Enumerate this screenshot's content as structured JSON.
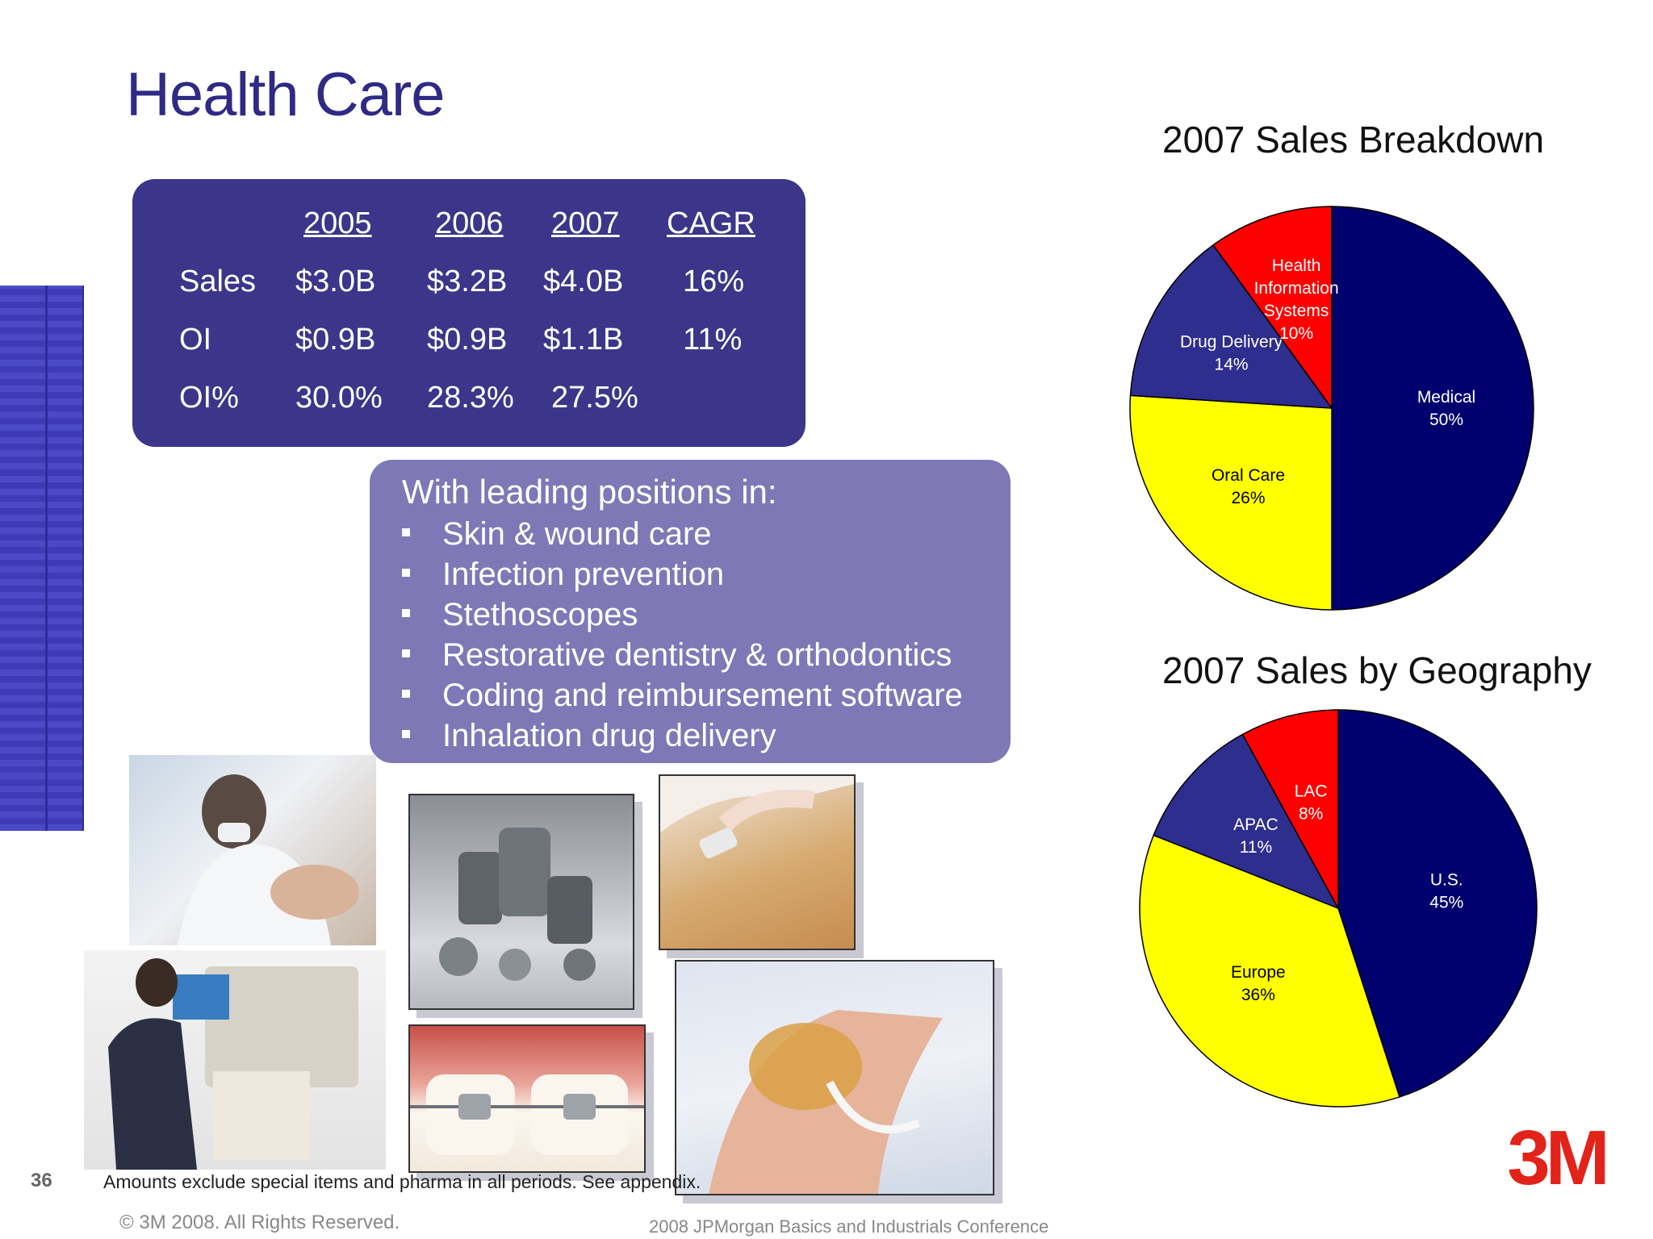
{
  "slide": {
    "title": "Health Care",
    "page_number": "36",
    "footnote": "Amounts exclude special items and pharma  in all periods. See appendix.",
    "copyright": "© 3M 2008.  All Rights Reserved.",
    "conference": "2008 JPMorgan Basics and Industrials Conference",
    "logo_text": "3M"
  },
  "financials": {
    "headers": [
      "2005",
      "2006",
      "2007",
      "CAGR"
    ],
    "rows": [
      {
        "label": "Sales",
        "values": [
          "$3.0B",
          "$3.2B",
          "$4.0B",
          "16%"
        ]
      },
      {
        "label": "OI",
        "values": [
          "$0.9B",
          "$0.9B",
          "$1.1B",
          "11%"
        ]
      },
      {
        "label": "OI%",
        "values": [
          "30.0%",
          "28.3%",
          "27.5%",
          ""
        ]
      }
    ]
  },
  "leading_positions": {
    "title": "With leading positions in:",
    "items": [
      "Skin & wound care",
      "Infection prevention",
      "Stethoscopes",
      "Restorative dentistry & orthodontics",
      "Coding and reimbursement software",
      "Inhalation drug delivery"
    ]
  },
  "colors": {
    "title": "#2e2a85",
    "fin_box": "#3b368a",
    "lead_box": "#7e78b6",
    "navy": "#00006e",
    "yellow": "#ffff00",
    "blue": "#2e2e8f",
    "red": "#ff0000",
    "logo_red": "#e2231a"
  },
  "chart_data": [
    {
      "type": "pie",
      "title": "2007 Sales Breakdown",
      "slices": [
        {
          "label_lines": [
            "Medical",
            "50%"
          ],
          "value": 50,
          "color": "#00006e",
          "text_color": "#ffffff"
        },
        {
          "label_lines": [
            "Oral Care",
            "26%"
          ],
          "value": 26,
          "color": "#ffff00",
          "text_color": "#000000"
        },
        {
          "label_lines": [
            "Drug Delivery",
            "14%"
          ],
          "value": 14,
          "color": "#2e2e8f",
          "text_color": "#ffffff"
        },
        {
          "label_lines": [
            "Health",
            "Information",
            "Systems",
            "10%"
          ],
          "value": 10,
          "color": "#ff0000",
          "text_color": "#ffffff"
        }
      ]
    },
    {
      "type": "pie",
      "title": "2007 Sales by Geography",
      "slices": [
        {
          "label_lines": [
            "U.S.",
            "45%"
          ],
          "value": 45,
          "color": "#00006e",
          "text_color": "#ffffff"
        },
        {
          "label_lines": [
            "Europe",
            "36%"
          ],
          "value": 36,
          "color": "#ffff00",
          "text_color": "#000000"
        },
        {
          "label_lines": [
            "APAC",
            "11%"
          ],
          "value": 11,
          "color": "#2e2e8f",
          "text_color": "#ffffff"
        },
        {
          "label_lines": [
            "LAC",
            "8%"
          ],
          "value": 8,
          "color": "#ff0000",
          "text_color": "#ffffff"
        }
      ]
    }
  ]
}
